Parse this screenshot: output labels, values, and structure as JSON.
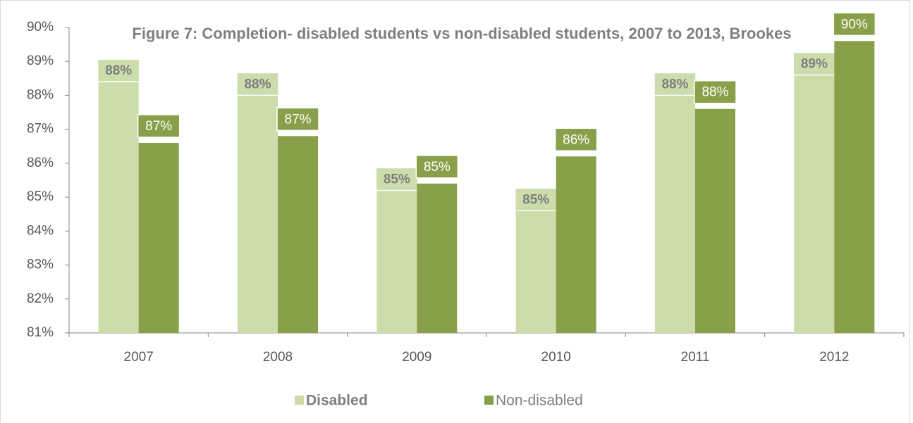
{
  "chart_data": {
    "type": "bar",
    "title": "Figure 7: Completion- disabled students vs non-disabled students, 2007 to 2013, Brookes",
    "categories": [
      "2007",
      "2008",
      "2009",
      "2010",
      "2011",
      "2012"
    ],
    "series": [
      {
        "name": "Disabled",
        "color": "#ccdcab",
        "values": [
          88.4,
          88.0,
          85.2,
          84.6,
          88.0,
          88.6
        ],
        "value_labels": [
          "88%",
          "88%",
          "85%",
          "85%",
          "88%",
          "89%"
        ]
      },
      {
        "name": "Non-disabled",
        "color": "#89a04a",
        "values": [
          86.6,
          86.8,
          85.4,
          86.2,
          87.6,
          89.6
        ],
        "value_labels": [
          "87%",
          "87%",
          "85%",
          "86%",
          "88%",
          "90%"
        ]
      }
    ],
    "ylim": [
      81,
      90
    ],
    "yticks": [
      {
        "value": 81,
        "label": "81%"
      },
      {
        "value": 82,
        "label": "82%"
      },
      {
        "value": 83,
        "label": "83%"
      },
      {
        "value": 84,
        "label": "84%"
      },
      {
        "value": 85,
        "label": "85%"
      },
      {
        "value": 86,
        "label": "86%"
      },
      {
        "value": 87,
        "label": "87%"
      },
      {
        "value": 88,
        "label": "88%"
      },
      {
        "value": 89,
        "label": "89%"
      },
      {
        "value": 90,
        "label": "90%"
      }
    ],
    "grid": false,
    "legend": "bottom"
  }
}
